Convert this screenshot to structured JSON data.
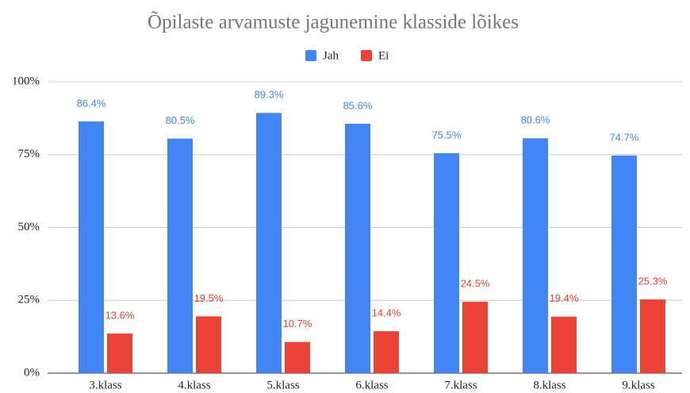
{
  "chart_data": {
    "type": "bar",
    "title": "Õpilaste arvamuste jagunemine klasside lõikes",
    "categories": [
      "3.klass",
      "4.klass",
      "5.klass",
      "6.klass",
      "7.klass",
      "8.klass",
      "9.klass"
    ],
    "series": [
      {
        "name": "Jah",
        "color": "#4285f4",
        "values": [
          86.4,
          80.5,
          89.3,
          85.6,
          75.5,
          80.6,
          74.7
        ],
        "value_labels": [
          "86.4%",
          "80.5%",
          "89.3%",
          "85.6%",
          "75.5%",
          "80.6%",
          "74.7%"
        ]
      },
      {
        "name": "Ei",
        "color": "#ea4335",
        "values": [
          13.6,
          19.5,
          10.7,
          14.4,
          24.5,
          19.4,
          25.3
        ],
        "value_labels": [
          "13.6%",
          "19.5%",
          "10.7%",
          "14.4%",
          "24.5%",
          "19.4%",
          "25.3%"
        ]
      }
    ],
    "ylim": [
      0,
      100
    ],
    "yticks": [
      {
        "value": 0,
        "label": "0%"
      },
      {
        "value": 25,
        "label": "25%"
      },
      {
        "value": 50,
        "label": "50%"
      },
      {
        "value": 75,
        "label": "75%"
      },
      {
        "value": 100,
        "label": "100%"
      }
    ],
    "grid": true,
    "legend": "top"
  }
}
